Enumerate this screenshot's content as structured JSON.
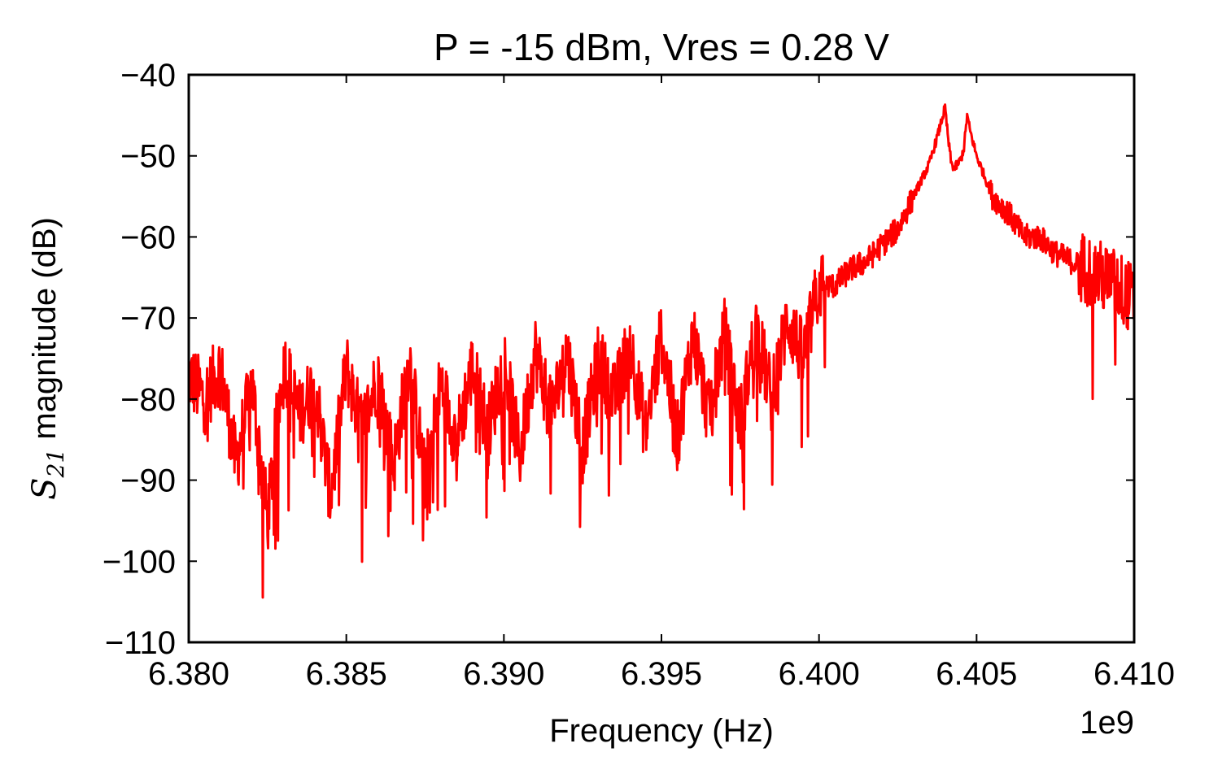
{
  "chart_data": {
    "type": "line",
    "title": "P = -15 dBm, Vres = 0.28 V",
    "xlabel": "Frequency (Hz)",
    "ylabel_symbol": "S",
    "ylabel_subscript": "21",
    "ylabel_rest": " magnitude (dB)",
    "x_offset_text": "1e9",
    "xlim": [
      6.38,
      6.41
    ],
    "ylim": [
      -110,
      -40
    ],
    "x_scale_factor": 1000000000,
    "x_ticks": [
      {
        "value": 6.38,
        "label": "6.380"
      },
      {
        "value": 6.385,
        "label": "6.385"
      },
      {
        "value": 6.39,
        "label": "6.390"
      },
      {
        "value": 6.395,
        "label": "6.395"
      },
      {
        "value": 6.4,
        "label": "6.400"
      },
      {
        "value": 6.405,
        "label": "6.405"
      },
      {
        "value": 6.41,
        "label": "6.410"
      }
    ],
    "y_ticks": [
      {
        "value": -40,
        "label": "−40"
      },
      {
        "value": -50,
        "label": "−50"
      },
      {
        "value": -60,
        "label": "−60"
      },
      {
        "value": -70,
        "label": "−70"
      },
      {
        "value": -80,
        "label": "−80"
      },
      {
        "value": -90,
        "label": "−90"
      },
      {
        "value": -100,
        "label": "−100"
      },
      {
        "value": -110,
        "label": "−110"
      }
    ],
    "grid": false,
    "series": [
      {
        "color": "#ff0000",
        "x": [
          6.38,
          6.3805,
          6.381,
          6.3815,
          6.382,
          6.3825,
          6.383,
          6.3835,
          6.384,
          6.3845,
          6.385,
          6.3855,
          6.386,
          6.3865,
          6.387,
          6.3875,
          6.388,
          6.3885,
          6.389,
          6.3895,
          6.39,
          6.3905,
          6.391,
          6.3915,
          6.392,
          6.3925,
          6.393,
          6.3935,
          6.394,
          6.3945,
          6.395,
          6.3955,
          6.396,
          6.3965,
          6.397,
          6.3975,
          6.398,
          6.3985,
          6.399,
          6.3995,
          6.4,
          6.4005,
          6.401,
          6.4015,
          6.402,
          6.4025,
          6.403,
          6.4035,
          6.4038,
          6.404,
          6.4041,
          6.4042,
          6.4043,
          6.4044,
          6.4045,
          6.4046,
          6.4047,
          6.4048,
          6.405,
          6.4055,
          6.406,
          6.4065,
          6.407,
          6.4075,
          6.408,
          6.4085,
          6.409,
          6.4095,
          6.41
        ],
        "y": [
          -77,
          -80,
          -76,
          -88,
          -78,
          -95,
          -75,
          -82,
          -78,
          -92,
          -76,
          -84,
          -77,
          -88,
          -75,
          -90,
          -78,
          -85,
          -76,
          -84,
          -75,
          -87,
          -74,
          -82,
          -74,
          -86,
          -75,
          -80,
          -73,
          -84,
          -72,
          -85,
          -72,
          -82,
          -72,
          -83,
          -71,
          -80,
          -70,
          -75,
          -66,
          -66,
          -64,
          -63,
          -61,
          -59,
          -55,
          -51,
          -47,
          -44,
          -48,
          -51,
          -51.5,
          -51,
          -50.5,
          -49,
          -45,
          -47,
          -50,
          -55,
          -57,
          -60,
          -60,
          -62,
          -63,
          -64,
          -65,
          -66,
          -68
        ]
      }
    ]
  }
}
